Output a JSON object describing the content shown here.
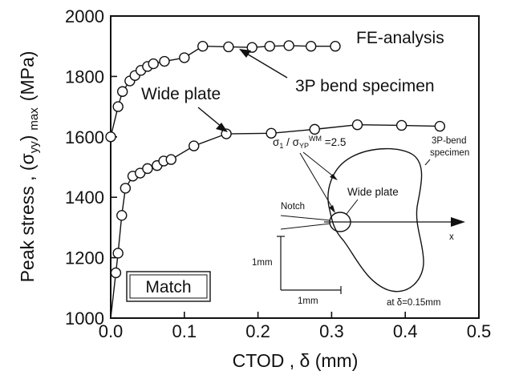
{
  "chart_data": {
    "type": "line",
    "xlabel_prefix": "CTOD , ",
    "xlabel_symbol": "δ",
    "xlabel_unit": " (mm)",
    "ylabel_prefix": "Peak stress , (",
    "ylabel_sigma": "σ",
    "ylabel_sub": "yy",
    "ylabel_suffix": ")",
    "ylabel_max": "max",
    "ylabel_unit": "(MPa)",
    "xlim": [
      0.0,
      0.5
    ],
    "ylim": [
      1000,
      2000
    ],
    "x_ticks": [
      "0.0",
      "0.1",
      "0.2",
      "0.3",
      "0.4",
      "0.5"
    ],
    "y_ticks": [
      "1000",
      "1200",
      "1400",
      "1600",
      "1800",
      "2000"
    ],
    "grid": false,
    "series": [
      {
        "name": "3P bend specimen",
        "x": [
          0.0,
          0.01,
          0.016,
          0.026,
          0.033,
          0.041,
          0.05,
          0.058,
          0.073,
          0.1,
          0.125,
          0.16,
          0.192,
          0.216,
          0.242,
          0.272,
          0.305
        ],
        "y": [
          1600,
          1700,
          1750,
          1785,
          1803,
          1820,
          1833,
          1842,
          1850,
          1862,
          1900,
          1898,
          1896,
          1900,
          1902,
          1900,
          1900
        ]
      },
      {
        "name": "Wide plate",
        "x": [
          0.0,
          0.007,
          0.01,
          0.015,
          0.02,
          0.03,
          0.04,
          0.05,
          0.063,
          0.072,
          0.082,
          0.113,
          0.157,
          0.218,
          0.277,
          0.335,
          0.395,
          0.447
        ],
        "y": [
          1000,
          1150,
          1215,
          1340,
          1430,
          1470,
          1480,
          1495,
          1505,
          1520,
          1525,
          1570,
          1610,
          1612,
          1625,
          1640,
          1638,
          1635
        ]
      }
    ],
    "annotations": {
      "method_label": "FE-analysis",
      "bend_label": "3P bend specimen",
      "wide_label": "Wide plate",
      "match_label": "Match"
    },
    "inset": {
      "notch_label": "Notch",
      "x_label": "x",
      "ratio_sigma1": "σ",
      "ratio_sub1": "1",
      "ratio_slash": " / σ",
      "ratio_sub2": "YP",
      "ratio_sup": "WM",
      "ratio_value": " =2.5",
      "wide_label": "Wide plate",
      "bend_label_line1": "3P-bend",
      "bend_label_line2": "specimen",
      "scale_v_label": "1mm",
      "scale_h_label": "1mm",
      "delta_prefix": "at ",
      "delta_symbol": "δ",
      "delta_value": "=0.15mm"
    }
  }
}
